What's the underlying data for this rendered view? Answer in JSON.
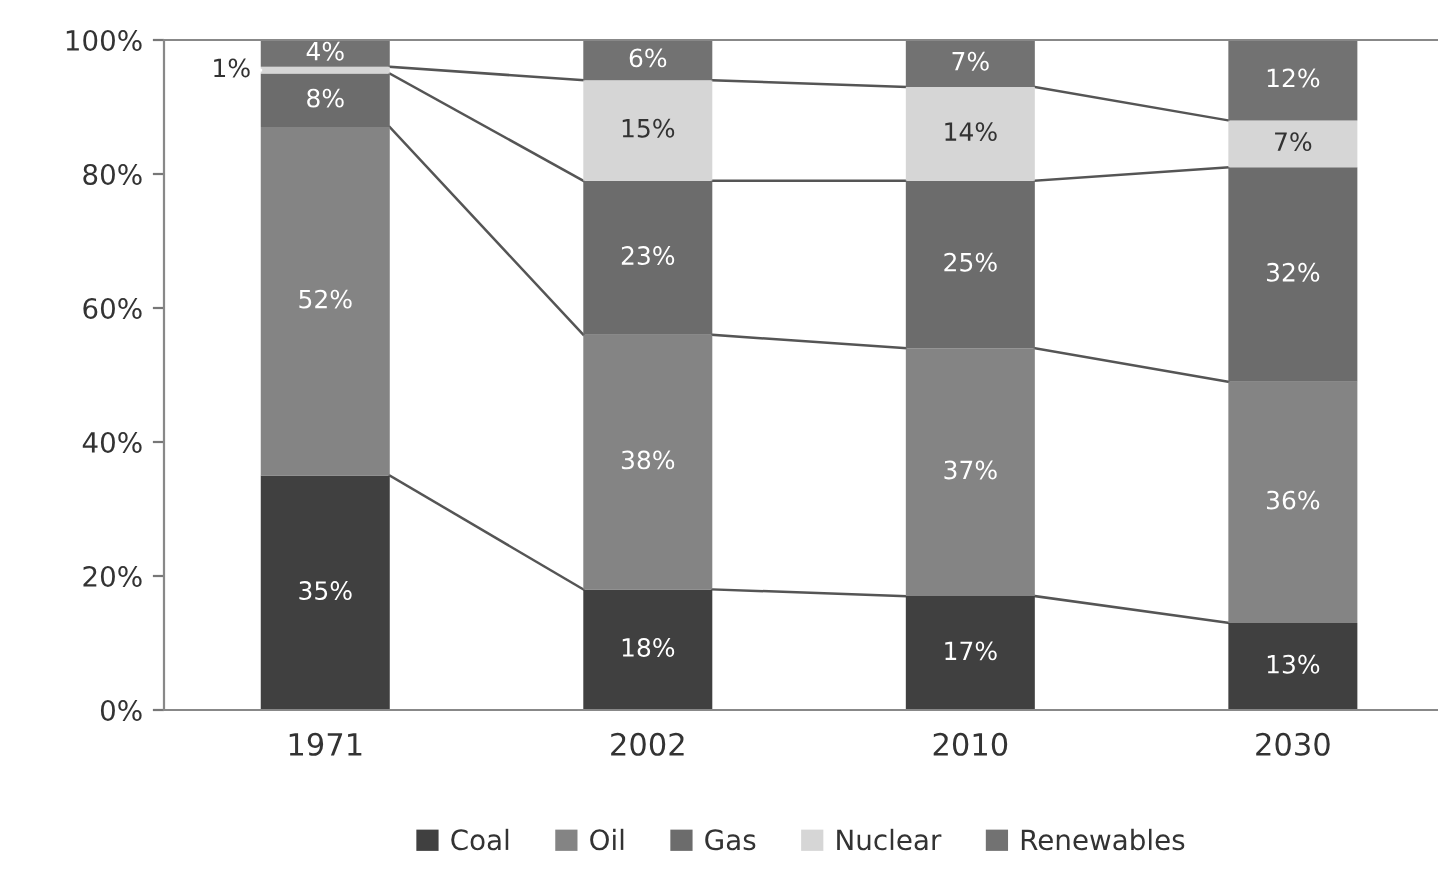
{
  "chart_data": {
    "type": "bar",
    "stacked": true,
    "categories": [
      "1971",
      "2002",
      "2010",
      "2030"
    ],
    "series": [
      {
        "name": "Coal",
        "color": "#404040",
        "values": [
          35,
          18,
          17,
          13
        ],
        "value_labels": [
          "35%",
          "18%",
          "17%",
          "13%"
        ]
      },
      {
        "name": "Oil",
        "color": "#848484",
        "values": [
          52,
          38,
          37,
          36
        ],
        "value_labels": [
          "52%",
          "38%",
          "37%",
          "36%"
        ]
      },
      {
        "name": "Gas",
        "color": "#6c6c6c",
        "values": [
          8,
          23,
          25,
          32
        ],
        "value_labels": [
          "8%",
          "23%",
          "25%",
          "32%"
        ]
      },
      {
        "name": "Nuclear",
        "color": "#d6d6d6",
        "values": [
          1,
          15,
          14,
          7
        ],
        "value_labels": [
          "1%",
          "15%",
          "14%",
          "7%"
        ]
      },
      {
        "name": "Renewables",
        "color": "#727272",
        "values": [
          4,
          6,
          7,
          12
        ],
        "value_labels": [
          "4%",
          "6%",
          "7%",
          "12%"
        ]
      }
    ],
    "ylim": [
      0,
      100
    ],
    "yticks": [
      {
        "value": 0,
        "label": "0%"
      },
      {
        "value": 20,
        "label": "20%"
      },
      {
        "value": 40,
        "label": "40%"
      },
      {
        "value": 60,
        "label": "60%"
      },
      {
        "value": 80,
        "label": "80%"
      },
      {
        "value": 100,
        "label": "100%"
      }
    ],
    "grid": false,
    "legend": "bottom"
  }
}
